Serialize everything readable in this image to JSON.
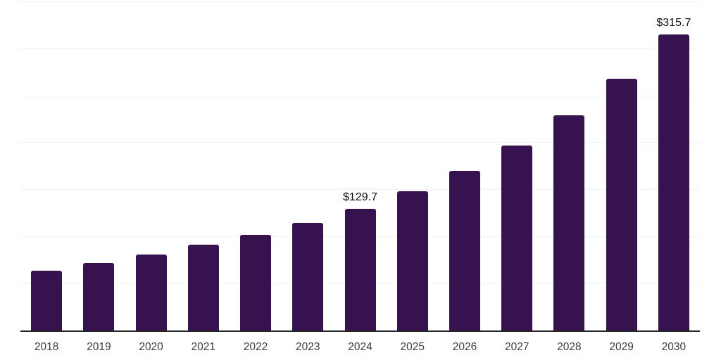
{
  "chart_data": {
    "type": "bar",
    "title": "",
    "xlabel": "",
    "ylabel": "",
    "categories": [
      "2018",
      "2019",
      "2020",
      "2021",
      "2022",
      "2023",
      "2024",
      "2025",
      "2026",
      "2027",
      "2028",
      "2029",
      "2030"
    ],
    "values": [
      63.8,
      72.0,
      81.3,
      91.3,
      102.3,
      115.0,
      129.7,
      148.8,
      170.6,
      197.1,
      229.4,
      268.4,
      315.7
    ],
    "point_labels": [
      {
        "category": "2024",
        "text": "$129.7"
      },
      {
        "category": "2030",
        "text": "$315.7"
      }
    ],
    "ylim": [
      0,
      350
    ],
    "gridline_step": 50,
    "grid": "horizontal",
    "legend_position": "none",
    "colors": {
      "bar": "#36124F",
      "gridline": "#f2f2f2",
      "axis_line": "#262626",
      "tick_label": "#3d3d3d",
      "value_label": "#111111",
      "background": "#ffffff"
    }
  }
}
